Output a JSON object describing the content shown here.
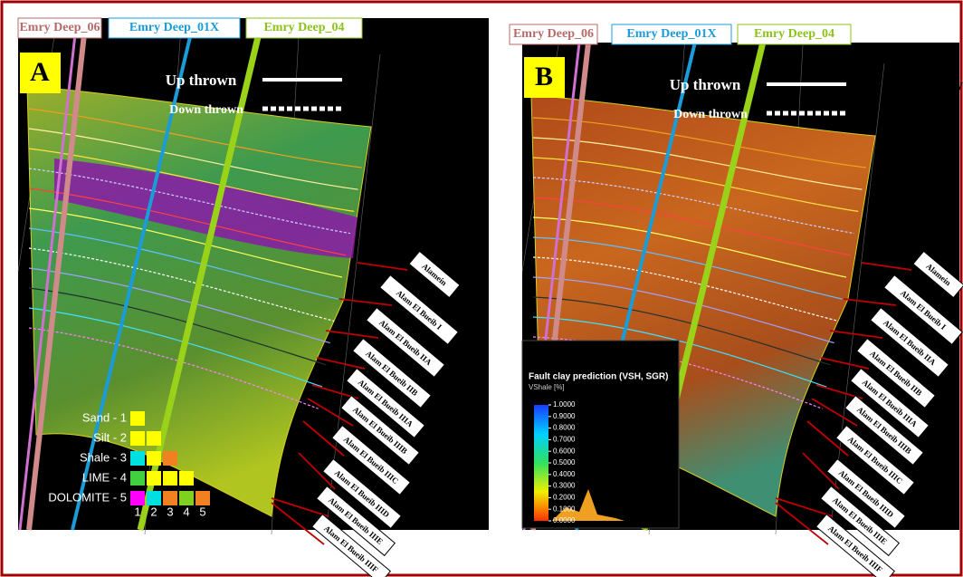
{
  "panels": [
    {
      "letter": "A",
      "wells": [
        "Emry Deep_06",
        "Emry Deep_01X",
        "Emry Deep_04"
      ],
      "throw_legend": {
        "up": "Up thrown",
        "down": "Down thrown"
      },
      "side_label": "Up thrown",
      "horizons": [
        "Alamein",
        "Alam El Bueib I",
        "Alam El Bueib IIA",
        "Alam El Bueib IIB",
        "Alam El Bueib IIIA",
        "Alam El Bueib IIIB",
        "Alam El Bueib IIIC",
        "Alam El Bueib IIID",
        "Alam El Bueib IIIE",
        "Alam El Bueib IIIF"
      ]
    },
    {
      "letter": "B",
      "wells": [
        "Emry Deep_06",
        "Emry Deep_01X",
        "Emry Deep_04"
      ],
      "throw_legend": {
        "up": "Up thrown",
        "down": "Down thrown"
      },
      "side_label": "Up thrown",
      "horizons": [
        "Alamein",
        "Alam El Bueib I",
        "Alam El Bueib IIA",
        "Alam El Bueib IIB",
        "Alam El Bueib IIIA",
        "Alam El Bueib IIIB",
        "Alam El Bueib IIIC",
        "Alam El Bueib IIID",
        "Alam El Bueib IIIE",
        "Alam El Bueib IIIF"
      ]
    }
  ],
  "lithology_legend": {
    "items": [
      "Sand - 1",
      "Silt - 2",
      "Shale - 3",
      "LIME - 4",
      "DOLOMITE - 5"
    ],
    "columns": [
      "1",
      "2",
      "3",
      "4",
      "5"
    ]
  },
  "colorbar": {
    "title": "Fault clay prediction (VSH, SGR)",
    "subtitle": "VShale [%]",
    "ticks": [
      "1.0000",
      "0.9000",
      "0.8000",
      "0.7000",
      "0.6000",
      "0.5000",
      "0.4000",
      "0.3000",
      "0.2000",
      "0.1000",
      "0.0000"
    ]
  }
}
